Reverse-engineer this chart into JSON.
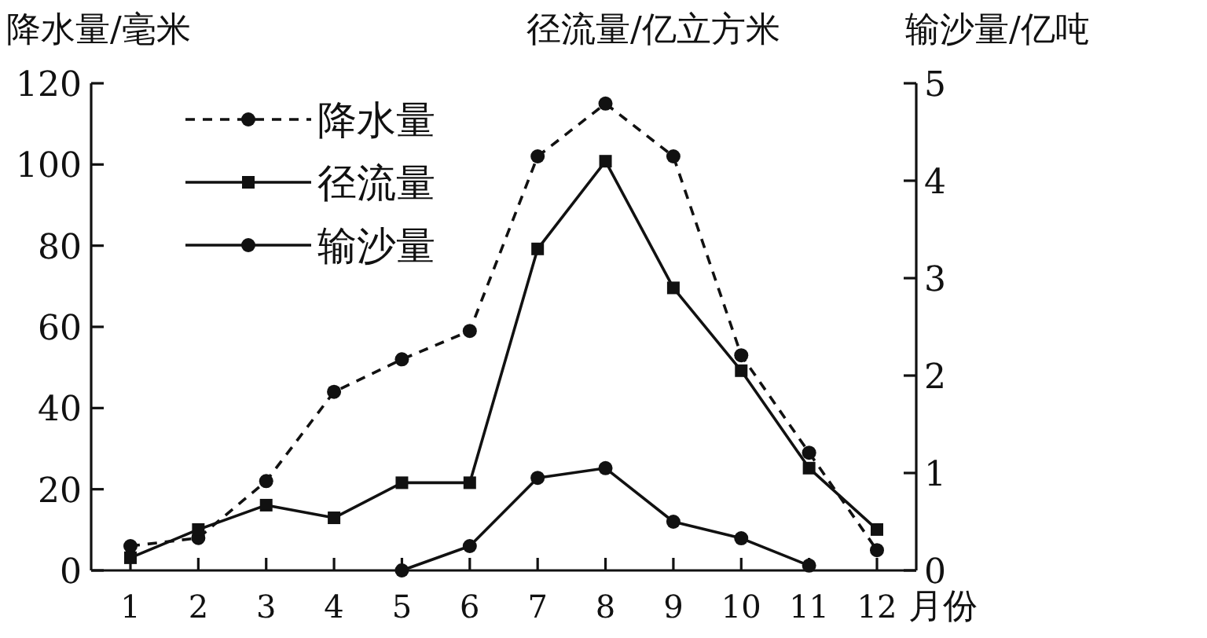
{
  "chart_data": {
    "type": "line",
    "categories": [
      "1",
      "2",
      "3",
      "4",
      "5",
      "6",
      "7",
      "8",
      "9",
      "10",
      "11",
      "12"
    ],
    "xlabel": "月份",
    "ylabel": "降水量/毫米",
    "y2label": "径流量/亿立方米",
    "annotations": [
      "输沙量/亿吨"
    ],
    "series": [
      {
        "name": "降水量",
        "color": "#111111",
        "marker": "circle",
        "line_style": "dashed",
        "values": [
          6,
          8,
          22,
          44,
          52,
          59,
          102,
          115,
          102,
          53,
          29,
          5
        ]
      },
      {
        "name": "径流量",
        "color": "#111111",
        "marker": "square",
        "line_style": "solid",
        "axis": "y2",
        "values": [
          0.13,
          0.42,
          0.67,
          0.54,
          0.9,
          0.9,
          3.3,
          4.2,
          2.9,
          2.05,
          1.05,
          0.42
        ]
      },
      {
        "name": "输沙量",
        "color": "#111111",
        "marker": "circle",
        "line_style": "solid",
        "axis": "y2",
        "values": [
          null,
          null,
          null,
          null,
          0,
          0.25,
          0.95,
          1.05,
          0.5,
          0.33,
          0.05,
          null
        ]
      }
    ],
    "ylim": [
      0,
      120
    ],
    "yticks": [
      0,
      20,
      40,
      60,
      80,
      100,
      120
    ],
    "y2lim": [
      0,
      5
    ],
    "y2ticks": [
      0,
      1,
      2,
      3,
      4,
      5
    ],
    "legend": "top left",
    "grid": false
  }
}
